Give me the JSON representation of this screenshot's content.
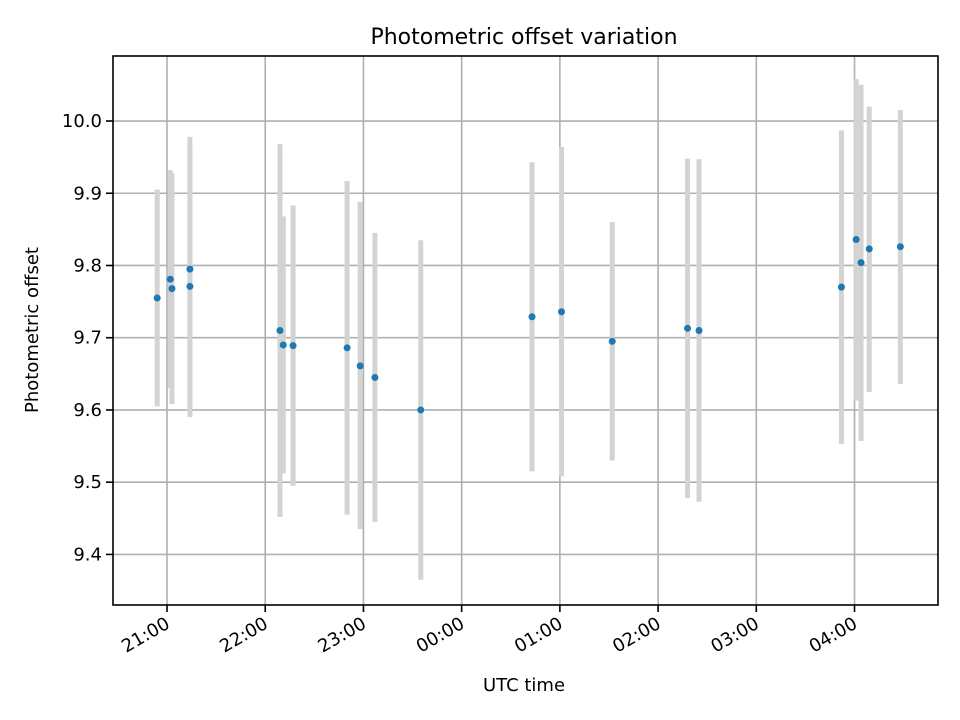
{
  "chart_data": {
    "type": "scatter",
    "title": "Photometric offset variation",
    "xlabel": "UTC time",
    "ylabel": "Photometric offset",
    "xlim": [
      "20:27",
      "04:51"
    ],
    "ylim": [
      9.33,
      10.09
    ],
    "x_ticks": [
      "21:00",
      "22:00",
      "23:00",
      "00:00",
      "01:00",
      "02:00",
      "03:00",
      "04:00"
    ],
    "y_ticks": [
      9.4,
      9.5,
      9.6,
      9.7,
      9.8,
      9.9,
      10.0
    ],
    "grid": true,
    "colors": {
      "point": "#1f77b4",
      "errorbar": "#d3d3d3",
      "grid": "#b0b0b0"
    },
    "points": [
      {
        "time": "20:54",
        "y": 9.755,
        "ylow": 9.605,
        "yhigh": 9.905
      },
      {
        "time": "21:02",
        "y": 9.781,
        "ylow": 9.63,
        "yhigh": 9.932
      },
      {
        "time": "21:03",
        "y": 9.768,
        "ylow": 9.608,
        "yhigh": 9.928
      },
      {
        "time": "21:14",
        "y": 9.795,
        "ylow": 9.612,
        "yhigh": 9.978
      },
      {
        "time": "21:14",
        "y": 9.771,
        "ylow": 9.59,
        "yhigh": 9.952
      },
      {
        "time": "22:09",
        "y": 9.71,
        "ylow": 9.452,
        "yhigh": 9.968
      },
      {
        "time": "22:11",
        "y": 9.69,
        "ylow": 9.512,
        "yhigh": 9.868
      },
      {
        "time": "22:17",
        "y": 9.689,
        "ylow": 9.495,
        "yhigh": 9.883
      },
      {
        "time": "22:50",
        "y": 9.686,
        "ylow": 9.455,
        "yhigh": 9.917
      },
      {
        "time": "22:58",
        "y": 9.661,
        "ylow": 9.435,
        "yhigh": 9.888
      },
      {
        "time": "23:07",
        "y": 9.645,
        "ylow": 9.445,
        "yhigh": 9.845
      },
      {
        "time": "23:35",
        "y": 9.6,
        "ylow": 9.365,
        "yhigh": 9.835
      },
      {
        "time": "00:43",
        "y": 9.729,
        "ylow": 9.515,
        "yhigh": 9.943
      },
      {
        "time": "01:01",
        "y": 9.736,
        "ylow": 9.508,
        "yhigh": 9.964
      },
      {
        "time": "01:32",
        "y": 9.695,
        "ylow": 9.53,
        "yhigh": 9.86
      },
      {
        "time": "02:18",
        "y": 9.713,
        "ylow": 9.478,
        "yhigh": 9.948
      },
      {
        "time": "02:25",
        "y": 9.71,
        "ylow": 9.473,
        "yhigh": 9.947
      },
      {
        "time": "03:52",
        "y": 9.77,
        "ylow": 9.553,
        "yhigh": 9.987
      },
      {
        "time": "04:01",
        "y": 9.836,
        "ylow": 9.613,
        "yhigh": 10.058
      },
      {
        "time": "04:04",
        "y": 9.804,
        "ylow": 9.557,
        "yhigh": 10.05
      },
      {
        "time": "04:09",
        "y": 9.823,
        "ylow": 9.625,
        "yhigh": 10.02
      },
      {
        "time": "04:28",
        "y": 9.826,
        "ylow": 9.636,
        "yhigh": 10.015
      }
    ]
  }
}
